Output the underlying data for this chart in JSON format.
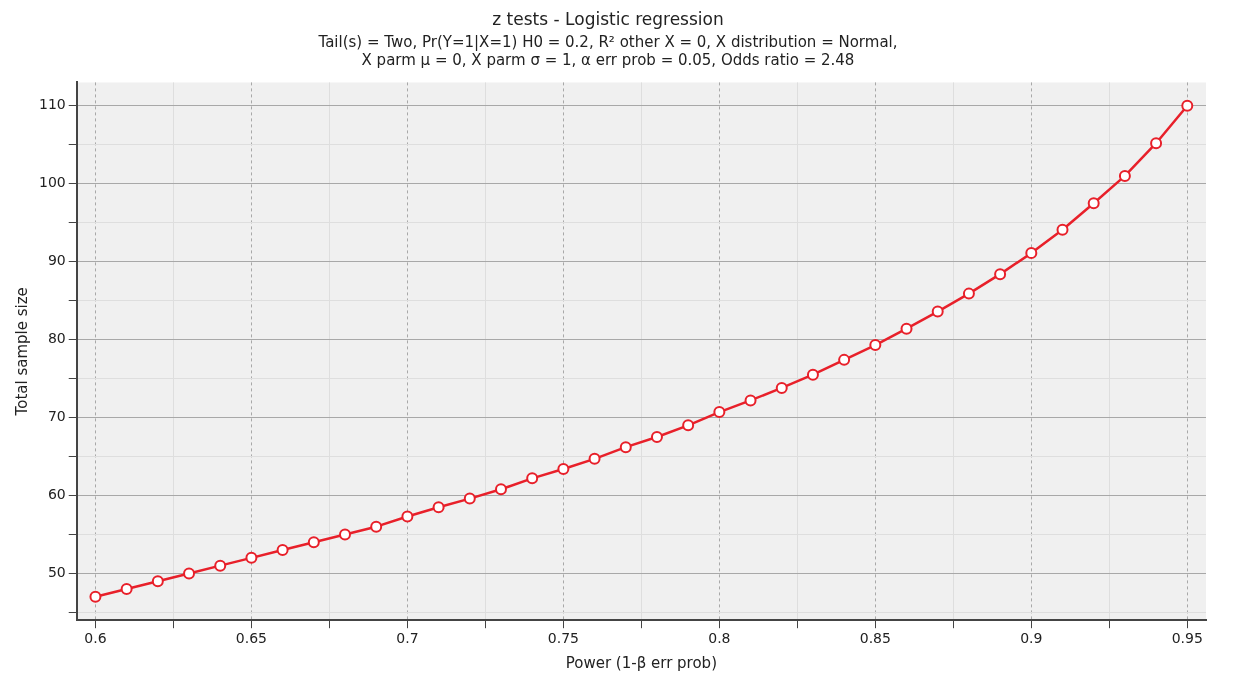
{
  "chart_data": {
    "type": "line",
    "title": "z tests - Logistic regression",
    "subtitle": "Tail(s) = Two, Pr(Y=1|X=1) H0 = 0.2, R² other X = 0, X distribution = Normal,\nX parm μ = 0, X parm σ = 1, α err prob = 0.05, Odds ratio = 2.48",
    "xlabel": "Power (1-β err prob)",
    "ylabel": "Total sample size",
    "x": [
      0.6,
      0.61,
      0.62,
      0.63,
      0.64,
      0.65,
      0.66,
      0.67,
      0.68,
      0.69,
      0.7,
      0.71,
      0.72,
      0.73,
      0.74,
      0.75,
      0.76,
      0.77,
      0.78,
      0.79,
      0.8,
      0.81,
      0.82,
      0.83,
      0.84,
      0.85,
      0.86,
      0.87,
      0.88,
      0.89,
      0.9,
      0.91,
      0.92,
      0.93,
      0.94,
      0.95
    ],
    "series": [
      {
        "color": "#e8202a",
        "values": [
          47,
          48,
          49,
          50,
          51,
          52,
          53,
          54,
          55,
          56,
          57.3,
          58.5,
          59.6,
          60.8,
          62.2,
          63.4,
          64.7,
          66.2,
          67.5,
          69,
          70.7,
          72.2,
          73.8,
          75.5,
          77.4,
          79.3,
          81.4,
          83.6,
          85.9,
          88.4,
          91.1,
          94.1,
          97.5,
          101,
          105.2,
          110
        ]
      }
    ],
    "xlim": [
      0.594,
      0.956
    ],
    "xticks": [
      0.6,
      {
        "value": 0.625,
        "label": null
      },
      0.65,
      {
        "value": 0.675,
        "label": null
      },
      0.7,
      {
        "value": 0.725,
        "label": null
      },
      0.75,
      {
        "value": 0.775,
        "label": null
      },
      0.8,
      {
        "value": 0.825,
        "label": null
      },
      0.85,
      {
        "value": 0.875,
        "label": null
      },
      0.9,
      {
        "value": 0.925,
        "label": null
      },
      0.95
    ],
    "ylim": [
      44,
      113
    ],
    "yticks": [
      {
        "value": 45,
        "label": null
      },
      50,
      {
        "value": 55,
        "label": null
      },
      60,
      {
        "value": 65,
        "label": null
      },
      70,
      {
        "value": 75,
        "label": null
      },
      80,
      {
        "value": 85,
        "label": null
      },
      90,
      {
        "value": 95,
        "label": null
      },
      100,
      {
        "value": 105,
        "label": null
      },
      110
    ],
    "grid": true,
    "legend": false,
    "marker": "circle",
    "line_style": "solid"
  }
}
